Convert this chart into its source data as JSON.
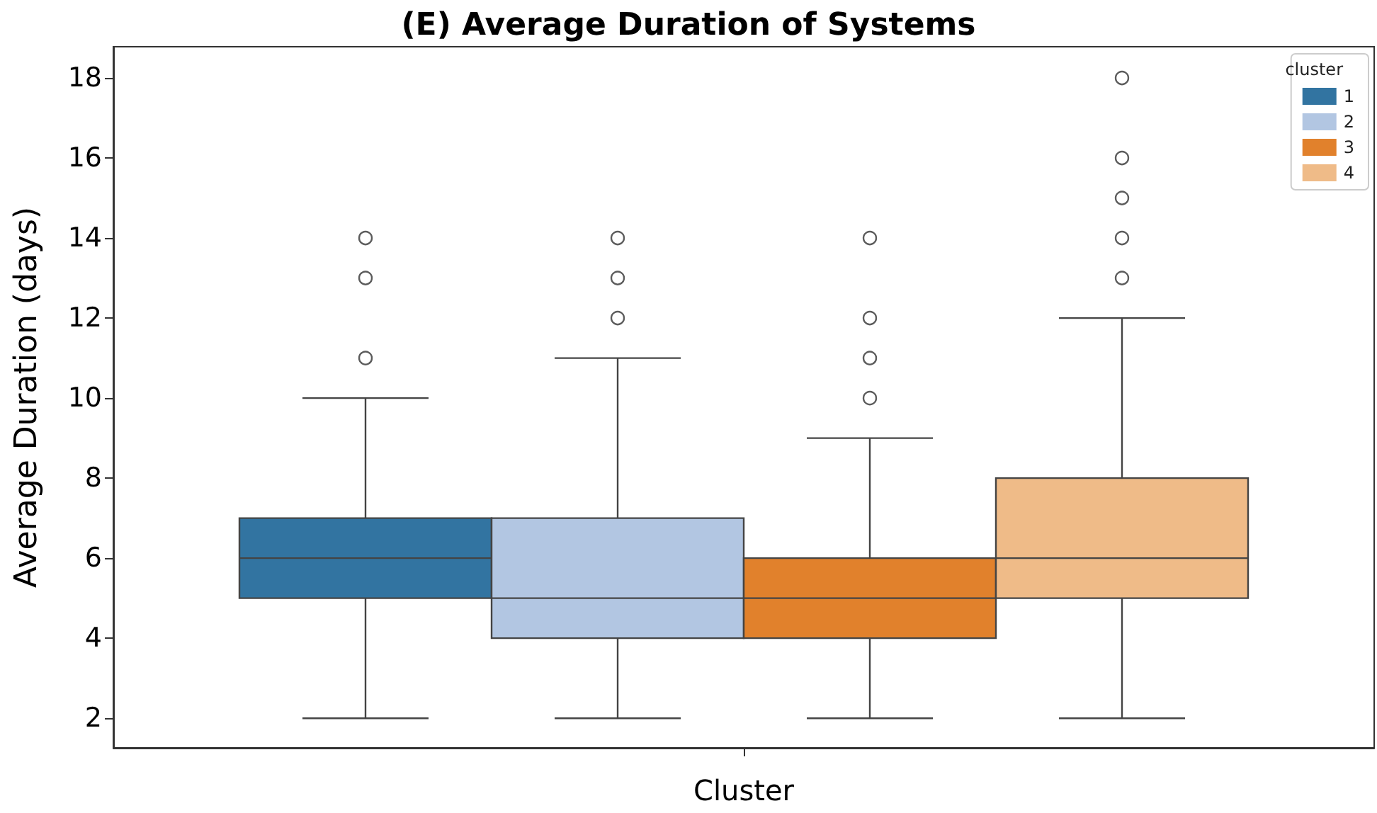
{
  "chart_data": {
    "type": "box",
    "title": "(E) Average Duration of Systems",
    "xlabel": "Cluster",
    "ylabel": "Average Duration (days)",
    "legend_title": "cluster",
    "legend": "top right",
    "categories": [
      null
    ],
    "series": [
      {
        "name": "1",
        "color": "#3274a1",
        "boxes": [
          {
            "low": 2,
            "q1": 5,
            "median": 6,
            "q3": 7,
            "high": 10,
            "outliers": [
              11,
              13,
              14
            ]
          }
        ]
      },
      {
        "name": "2",
        "color": "#b2c6e2",
        "boxes": [
          {
            "low": 2,
            "q1": 4,
            "median": 5,
            "q3": 7,
            "high": 11,
            "outliers": [
              12,
              13,
              14
            ]
          }
        ]
      },
      {
        "name": "3",
        "color": "#e1812c",
        "boxes": [
          {
            "low": 2,
            "q1": 4,
            "median": 5,
            "q3": 6,
            "high": 9,
            "outliers": [
              10,
              11,
              12,
              14
            ]
          }
        ]
      },
      {
        "name": "4",
        "color": "#efbb88",
        "boxes": [
          {
            "low": 2,
            "q1": 5,
            "median": 6,
            "q3": 8,
            "high": 12,
            "outliers": [
              13,
              14,
              15,
              16,
              18
            ]
          }
        ]
      }
    ],
    "ylim": [
      1.26,
      18.78
    ],
    "yticks": [
      2,
      4,
      6,
      8,
      10,
      12,
      14,
      16,
      18
    ]
  }
}
